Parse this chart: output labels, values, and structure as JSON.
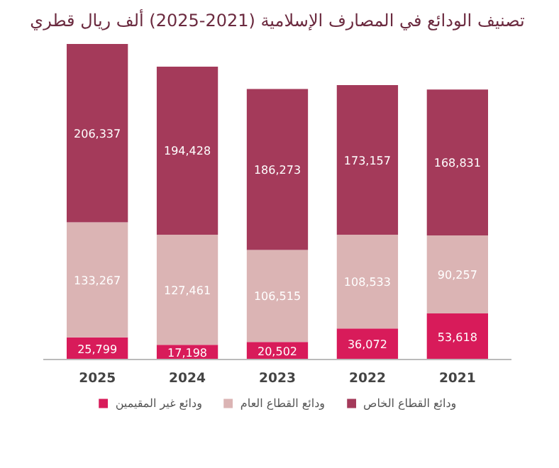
{
  "chart_data": {
    "type": "bar",
    "stacked": true,
    "title": "تصنيف الودائع في المصارف الإسلامية (2021-2025) ألف ريال قطري",
    "categories": [
      "2025",
      "2024",
      "2023",
      "2022",
      "2021"
    ],
    "legend": "bottom",
    "series": [
      {
        "name": "ودائع غير المقيمين",
        "color": "#d81b5a",
        "values": [
          25799,
          17198,
          20502,
          36072,
          53618
        ],
        "value_labels": [
          "25,799",
          "17,198",
          "20,502",
          "36,072",
          "53,618"
        ]
      },
      {
        "name": "ودائع القطاع العام",
        "color": "#dbb4b4",
        "values": [
          133267,
          127461,
          106515,
          108533,
          90257
        ],
        "value_labels": [
          "133,267",
          "127,461",
          "106,515",
          "108,533",
          "90,257"
        ]
      },
      {
        "name": "ودائع القطاع الخاص",
        "color": "#a43a5a",
        "values": [
          206337,
          194428,
          186273,
          173157,
          168831
        ],
        "value_labels": [
          "206,337",
          "194,428",
          "186,273",
          "173,157",
          "168,831"
        ]
      }
    ]
  }
}
